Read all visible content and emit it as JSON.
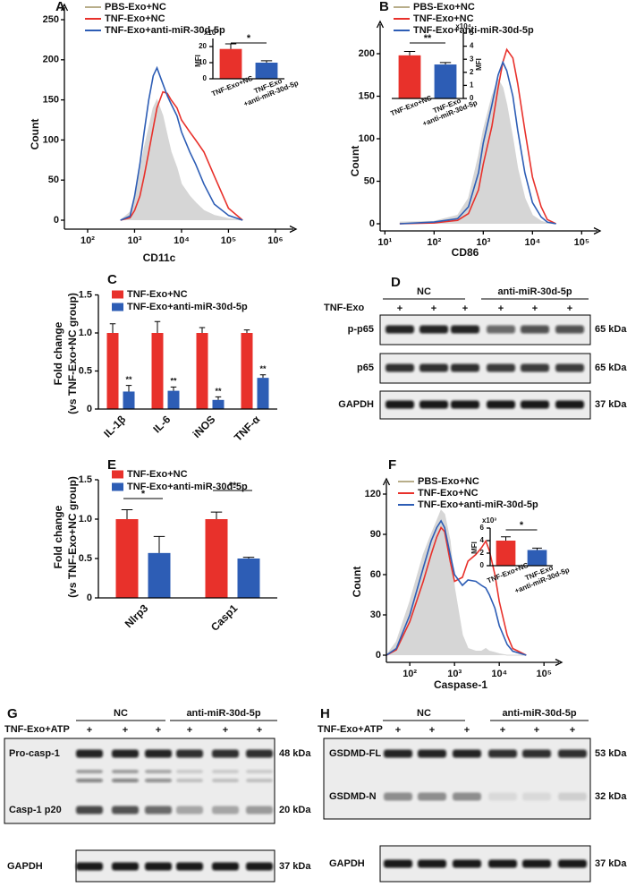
{
  "chart_data": [
    {
      "panel": "A",
      "type": "line",
      "x_scale": "log",
      "x_label": "CD11c",
      "y_label": "Count",
      "x": [
        500,
        800,
        1000,
        1300,
        1600,
        2000,
        2500,
        3000,
        4000,
        5000,
        6000,
        8000,
        10000,
        15000,
        20000,
        30000,
        50000,
        100000,
        200000
      ],
      "xlim": [
        32,
        1700000
      ],
      "xticks": [
        {
          "value": 100,
          "label": "10²"
        },
        {
          "value": 1000,
          "label": "10³"
        },
        {
          "value": 10000,
          "label": "10⁴"
        },
        {
          "value": 100000,
          "label": "10⁵"
        },
        {
          "value": 1000000,
          "label": "10⁶"
        }
      ],
      "ylim": [
        0,
        250
      ],
      "yticks": [
        0,
        50,
        100,
        150,
        200,
        250
      ],
      "series": [
        {
          "name": "PBS-Exo+NC",
          "color": "#b8ae8a",
          "fill": "#d6d6d6",
          "values": [
            0,
            10,
            30,
            60,
            90,
            115,
            140,
            150,
            130,
            105,
            85,
            65,
            45,
            30,
            22,
            12,
            6,
            2,
            0
          ]
        },
        {
          "name": "TNF-Exo+NC",
          "color": "#e8312b",
          "values": [
            0,
            3,
            12,
            30,
            55,
            85,
            115,
            140,
            160,
            158,
            150,
            140,
            125,
            110,
            100,
            85,
            55,
            15,
            0
          ]
        },
        {
          "name": "TNF-Exo+anti-miR-30d-5p",
          "color": "#2d5db5",
          "values": [
            0,
            5,
            30,
            70,
            110,
            150,
            180,
            190,
            170,
            155,
            145,
            130,
            110,
            85,
            70,
            45,
            20,
            6,
            0
          ]
        }
      ]
    },
    {
      "type": "bar",
      "y_label": "MFI",
      "multiplier": "x10³",
      "categories": [
        "TNF-Exo+NC",
        "TNF-Exo\n+anti-miR-30d-5p"
      ],
      "values": [
        18.5,
        10
      ],
      "errors": [
        3.2,
        1.2
      ],
      "colors": [
        "#e8312b",
        "#2d5db5"
      ],
      "ylim": [
        0,
        25
      ],
      "yticks": [
        0,
        10,
        20
      ],
      "significance": "*"
    },
    {
      "panel": "B",
      "type": "line",
      "x_scale": "log",
      "x_label": "CD86",
      "y_label": "Count",
      "x": [
        20,
        100,
        300,
        500,
        800,
        1000,
        1500,
        2000,
        2500,
        3000,
        4000,
        5000,
        7000,
        10000,
        15000,
        20000,
        30000
      ],
      "xlim": [
        8,
        150000
      ],
      "xticks": [
        {
          "value": 10,
          "label": "10¹"
        },
        {
          "value": 100,
          "label": "10²"
        },
        {
          "value": 1000,
          "label": "10³"
        },
        {
          "value": 10000,
          "label": "10⁴"
        },
        {
          "value": 100000,
          "label": "10⁵"
        }
      ],
      "ylim": [
        0,
        220
      ],
      "yticks": [
        0,
        50,
        100,
        150,
        200
      ],
      "series": [
        {
          "name": "PBS-Exo+NC",
          "color": "#b8ae8a",
          "fill": "#d6d6d6",
          "values": [
            2,
            3,
            10,
            30,
            80,
            110,
            150,
            170,
            160,
            140,
            100,
            65,
            30,
            10,
            3,
            1,
            0
          ]
        },
        {
          "name": "TNF-Exo+NC",
          "color": "#e8312b",
          "values": [
            0,
            1,
            4,
            12,
            40,
            70,
            115,
            160,
            190,
            205,
            195,
            165,
            110,
            55,
            20,
            5,
            0
          ]
        },
        {
          "name": "TNF-Exo+anti-miR-30d-5p",
          "color": "#2d5db5",
          "values": [
            0,
            2,
            6,
            20,
            60,
            95,
            140,
            175,
            190,
            180,
            150,
            110,
            60,
            25,
            8,
            2,
            0
          ]
        }
      ]
    },
    {
      "type": "bar",
      "y_label": "MFI",
      "multiplier": "x10⁴",
      "categories": [
        "TNF-Exo+NC",
        "TNF-Exo\n+anti-miR-30d-5p"
      ],
      "values": [
        3.3,
        2.6
      ],
      "errors": [
        0.3,
        0.15
      ],
      "colors": [
        "#e8312b",
        "#2d5db5"
      ],
      "ylim": [
        0,
        5
      ],
      "yticks": [
        0,
        1,
        2,
        3,
        4,
        5
      ],
      "significance": "**"
    },
    {
      "panel": "C",
      "type": "bar",
      "y_label": [
        "Fold change",
        "(vs TNF-Exo+NC group)"
      ],
      "categories": [
        "IL-1β",
        "IL-6",
        "iNOS",
        "TNF-α"
      ],
      "ylim": [
        0,
        1.5
      ],
      "yticks": [
        0,
        0.5,
        {
          "value": 1,
          "label": "1.0"
        },
        1.5
      ],
      "series": [
        {
          "name": "TNF-Exo+NC",
          "color": "#e8312b",
          "values": [
            1,
            1,
            1,
            1
          ],
          "errors": [
            0.12,
            0.15,
            0.07,
            0.04
          ]
        },
        {
          "name": "TNF-Exo+anti-miR-30d-5p",
          "color": "#2d5db5",
          "values": [
            0.23,
            0.24,
            0.12,
            0.41
          ],
          "errors": [
            0.08,
            0.05,
            0.04,
            0.04
          ],
          "labels": [
            "**",
            "**",
            "**",
            "**"
          ]
        }
      ]
    },
    {
      "panel": "E",
      "type": "bar",
      "y_label": [
        "Fold change",
        "(vs TNF-Exo+NC group)"
      ],
      "categories": [
        "Nlrp3",
        "Casp1"
      ],
      "ylim": [
        0,
        1.5
      ],
      "yticks": [
        0,
        0.5,
        {
          "value": 1,
          "label": "1.0"
        },
        1.5
      ],
      "series": [
        {
          "name": "TNF-Exo+NC",
          "color": "#e8312b",
          "values": [
            1,
            1
          ],
          "errors": [
            0.12,
            0.09
          ]
        },
        {
          "name": "TNF-Exo+anti-miR-30d-5p",
          "color": "#2d5db5",
          "values": [
            0.57,
            0.5
          ],
          "errors": [
            0.21,
            0.015
          ]
        }
      ],
      "significance": [
        "*",
        "**"
      ]
    },
    {
      "panel": "F",
      "type": "line",
      "x_scale": "log",
      "x_label": "Caspase-1",
      "y_label": "Count",
      "x": [
        30,
        50,
        100,
        200,
        300,
        400,
        500,
        600,
        800,
        1000,
        1500,
        2000,
        3000,
        4000,
        5000,
        6000,
        8000,
        10000,
        15000,
        20000,
        40000
      ],
      "xlim": [
        30,
        150000
      ],
      "xticks": [
        {
          "value": 100,
          "label": "10²"
        },
        {
          "value": 1000,
          "label": "10³"
        },
        {
          "value": 10000,
          "label": "10⁴"
        },
        {
          "value": 100000,
          "label": "10⁵"
        }
      ],
      "ylim": [
        0,
        120
      ],
      "yticks": [
        0,
        30,
        60,
        90,
        120
      ],
      "series": [
        {
          "name": "PBS-Exo+NC",
          "color": "#b8ae8a",
          "fill": "#d6d6d6",
          "values": [
            0,
            10,
            40,
            75,
            90,
            100,
            108,
            105,
            85,
            50,
            15,
            5,
            3,
            3,
            5,
            3,
            2,
            1,
            0,
            0,
            0
          ]
        },
        {
          "name": "TNF-Exo+NC",
          "color": "#e8312b",
          "values": [
            0,
            4,
            25,
            55,
            75,
            88,
            95,
            92,
            70,
            55,
            58,
            70,
            75,
            80,
            85,
            78,
            60,
            40,
            15,
            5,
            0
          ]
        },
        {
          "name": "TNF-Exo+anti-miR-30d-5p",
          "color": "#2d5db5",
          "values": [
            0,
            5,
            30,
            65,
            85,
            95,
            100,
            95,
            75,
            60,
            52,
            56,
            55,
            52,
            50,
            45,
            35,
            22,
            8,
            3,
            0
          ]
        }
      ]
    },
    {
      "type": "bar",
      "y_label": "MFI",
      "multiplier": "x10³",
      "categories": [
        "TNF-Exo+NC",
        "TNF-Exo\n+anti-miR-30d-5p"
      ],
      "values": [
        4,
        2.5
      ],
      "errors": [
        0.6,
        0.3
      ],
      "colors": [
        "#e8312b",
        "#2d5db5"
      ],
      "ylim": [
        0,
        6
      ],
      "yticks": [
        0,
        2,
        4,
        6
      ],
      "significance": "*"
    }
  ],
  "blots": [
    {
      "panel": "D",
      "treatment_label": "TNF-Exo",
      "groups": [
        "NC",
        "anti-miR-30d-5p"
      ],
      "lanes": [
        "+",
        "+",
        "+",
        "+",
        "+",
        "+"
      ],
      "rows": [
        {
          "label": "p-p65",
          "kda": "65 kDa"
        },
        {
          "label": "p65",
          "kda": "65 kDa"
        },
        {
          "label": "GAPDH",
          "kda": "37 kDa"
        }
      ]
    },
    {
      "panel": "G",
      "treatment_label": "TNF-Exo+ATP",
      "groups": [
        "NC",
        "anti-miR-30d-5p"
      ],
      "lanes": [
        "+",
        "+",
        "+",
        "+",
        "+",
        "+"
      ],
      "rows": [
        {
          "label": "Pro-casp-1",
          "kda": "48 kDa"
        },
        {
          "label": "Casp-1 p20",
          "kda": "20 kDa"
        },
        {
          "label": "GAPDH",
          "kda": "37 kDa"
        }
      ]
    },
    {
      "panel": "H",
      "treatment_label": "TNF-Exo+ATP",
      "groups": [
        "NC",
        "anti-miR-30d-5p"
      ],
      "lanes": [
        "+",
        "+",
        "+",
        "+",
        "+",
        "+"
      ],
      "rows": [
        {
          "label": "GSDMD-FL",
          "kda": "53 kDa"
        },
        {
          "label": "GSDMD-N",
          "kda": "32 kDa"
        },
        {
          "label": "GAPDH",
          "kda": "37 kDa"
        }
      ]
    }
  ]
}
